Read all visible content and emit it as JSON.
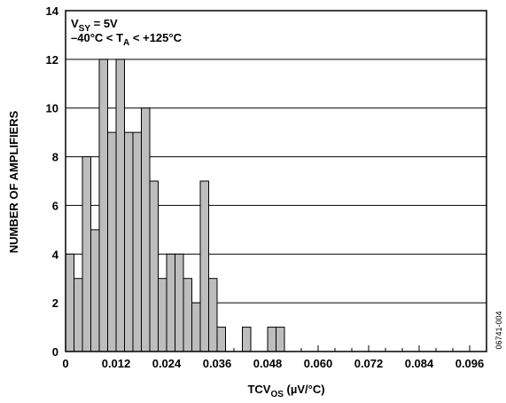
{
  "chart_data": {
    "type": "bar",
    "bin_width": 0.002,
    "x": [
      0.002,
      0.004,
      0.006,
      0.008,
      0.01,
      0.012,
      0.014,
      0.016,
      0.018,
      0.02,
      0.022,
      0.024,
      0.026,
      0.028,
      0.03,
      0.032,
      0.034,
      0.036,
      0.038,
      0.04,
      0.044,
      0.05,
      0.052
    ],
    "values": [
      4,
      3,
      8,
      5,
      12,
      9,
      12,
      9,
      9,
      10,
      7,
      3,
      4,
      4,
      3,
      2,
      7,
      3,
      1,
      0,
      1,
      1,
      1
    ],
    "xlim": [
      0,
      0.1
    ],
    "ylim": [
      0,
      14
    ],
    "x_ticks": [
      "0",
      "0.012",
      "0.024",
      "0.036",
      "0.048",
      "0.060",
      "0.072",
      "0.084",
      "0.096"
    ],
    "x_tick_values": [
      0,
      0.012,
      0.024,
      0.036,
      0.048,
      0.06,
      0.072,
      0.084,
      0.096
    ],
    "y_ticks": [
      "0",
      "2",
      "4",
      "6",
      "8",
      "10",
      "12",
      "14"
    ],
    "y_tick_values": [
      0,
      2,
      4,
      6,
      8,
      10,
      12,
      14
    ],
    "xlabel": {
      "main": "TCV",
      "sub": "OS",
      "rest": " (µV/°C)"
    },
    "ylabel": "NUMBER OF AMPLIFIERS",
    "grid": "horizontal",
    "bar_color": "#bdbdbd",
    "annotation": {
      "line1": {
        "a": "V",
        "sub": "SY",
        "b": " = 5V"
      },
      "line2": {
        "a": "–40°C < T",
        "sub": "A",
        "b": " < +125°C"
      }
    },
    "figure_id": "06741-004"
  }
}
